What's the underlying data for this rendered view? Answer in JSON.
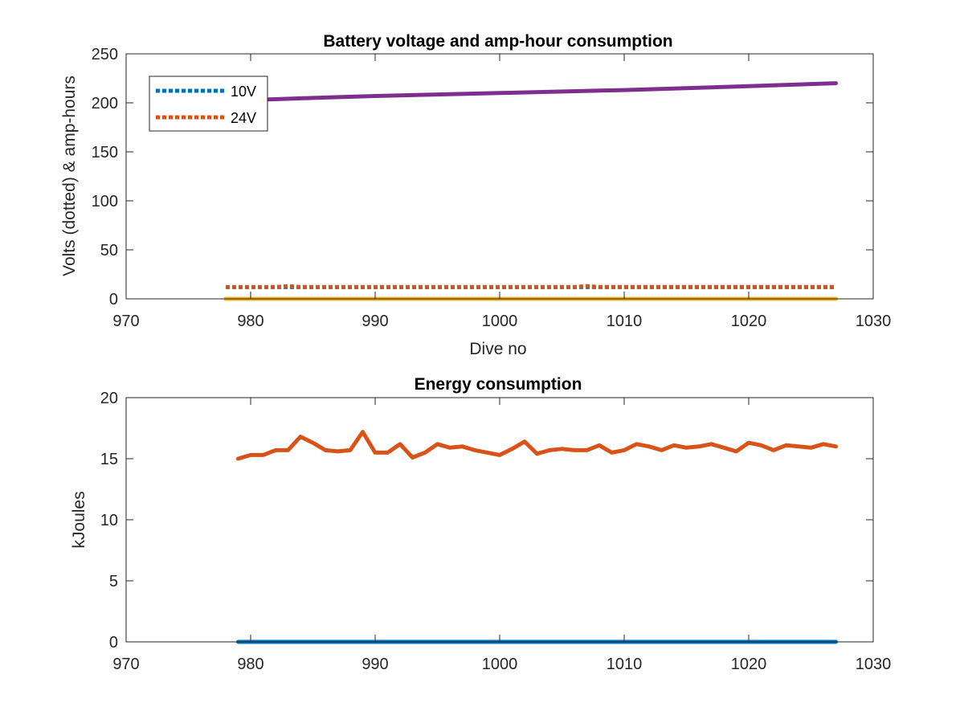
{
  "chart_data": [
    {
      "type": "line",
      "title": "Battery voltage and amp-hour consumption",
      "xlabel": "Dive no",
      "ylabel": "Volts (dotted) & amp-hours",
      "xlim": [
        970,
        1030
      ],
      "ylim": [
        0,
        250
      ],
      "xticks": [
        970,
        980,
        990,
        1000,
        1010,
        1020,
        1030
      ],
      "yticks": [
        0,
        50,
        100,
        150,
        200,
        250
      ],
      "grid": false,
      "legend": {
        "placement": "top-left",
        "entries": [
          "10V",
          "24V"
        ]
      },
      "series": [
        {
          "name": "10V",
          "style": "dotted",
          "color": "#0072BD",
          "x": [
            978,
            980,
            982,
            984,
            986,
            988,
            990,
            992,
            994,
            996,
            998,
            1000,
            1002,
            1004,
            1006,
            1008,
            1010,
            1012,
            1014,
            1016,
            1018,
            1020,
            1022,
            1024,
            1026,
            1027
          ],
          "y": [
            12,
            12,
            12,
            12,
            12,
            12,
            12,
            12,
            12,
            12,
            12,
            12,
            12,
            12,
            12,
            12,
            12,
            12,
            12,
            12,
            12,
            12,
            12,
            12,
            12,
            12
          ]
        },
        {
          "name": "24V",
          "style": "dotted",
          "color": "#D95319",
          "x": [
            978,
            980,
            982,
            983,
            984,
            986,
            988,
            990,
            992,
            994,
            996,
            998,
            1000,
            1002,
            1004,
            1006,
            1007,
            1008,
            1010,
            1012,
            1014,
            1016,
            1018,
            1020,
            1022,
            1024,
            1026,
            1027
          ],
          "y": [
            12,
            12,
            12,
            13,
            12,
            12,
            12,
            12,
            12,
            12,
            12,
            12,
            12,
            12,
            12,
            12,
            13,
            12,
            12,
            12,
            12,
            12,
            12,
            12,
            12,
            12,
            12,
            12
          ]
        },
        {
          "style": "solid",
          "color": "#EDB120",
          "x": [
            978,
            1027
          ],
          "y": [
            0,
            0
          ]
        },
        {
          "style": "solid",
          "color": "#7E2F8E",
          "x": [
            978,
            985,
            990,
            1000,
            1010,
            1020,
            1027
          ],
          "y": [
            202,
            205,
            207,
            210,
            213,
            217,
            220
          ]
        }
      ]
    },
    {
      "type": "line",
      "title": "Energy consumption",
      "xlabel": "",
      "ylabel": "kJoules",
      "xlim": [
        970,
        1030
      ],
      "ylim": [
        0,
        20
      ],
      "xticks": [
        970,
        980,
        990,
        1000,
        1010,
        1020,
        1030
      ],
      "yticks": [
        0,
        5,
        10,
        15,
        20
      ],
      "grid": false,
      "series": [
        {
          "style": "solid",
          "color": "#0072BD",
          "x": [
            979,
            1027
          ],
          "y": [
            0,
            0
          ]
        },
        {
          "style": "solid",
          "color": "#D95319",
          "x": [
            979,
            980,
            981,
            982,
            983,
            984,
            985,
            986,
            987,
            988,
            989,
            990,
            991,
            992,
            993,
            994,
            995,
            996,
            997,
            998,
            999,
            1000,
            1001,
            1002,
            1003,
            1004,
            1005,
            1006,
            1007,
            1008,
            1009,
            1010,
            1011,
            1012,
            1013,
            1014,
            1015,
            1016,
            1017,
            1018,
            1019,
            1020,
            1021,
            1022,
            1023,
            1024,
            1025,
            1026,
            1027
          ],
          "y": [
            15.0,
            15.3,
            15.3,
            15.7,
            15.7,
            16.8,
            16.3,
            15.7,
            15.6,
            15.7,
            17.2,
            15.5,
            15.5,
            16.2,
            15.1,
            15.5,
            16.2,
            15.9,
            16.0,
            15.7,
            15.5,
            15.3,
            15.8,
            16.4,
            15.4,
            15.7,
            15.8,
            15.7,
            15.7,
            16.1,
            15.5,
            15.7,
            16.2,
            16.0,
            15.7,
            16.1,
            15.9,
            16.0,
            16.2,
            15.9,
            15.6,
            16.3,
            16.1,
            15.7,
            16.1,
            16.0,
            15.9,
            16.2,
            16.0
          ]
        }
      ]
    }
  ]
}
